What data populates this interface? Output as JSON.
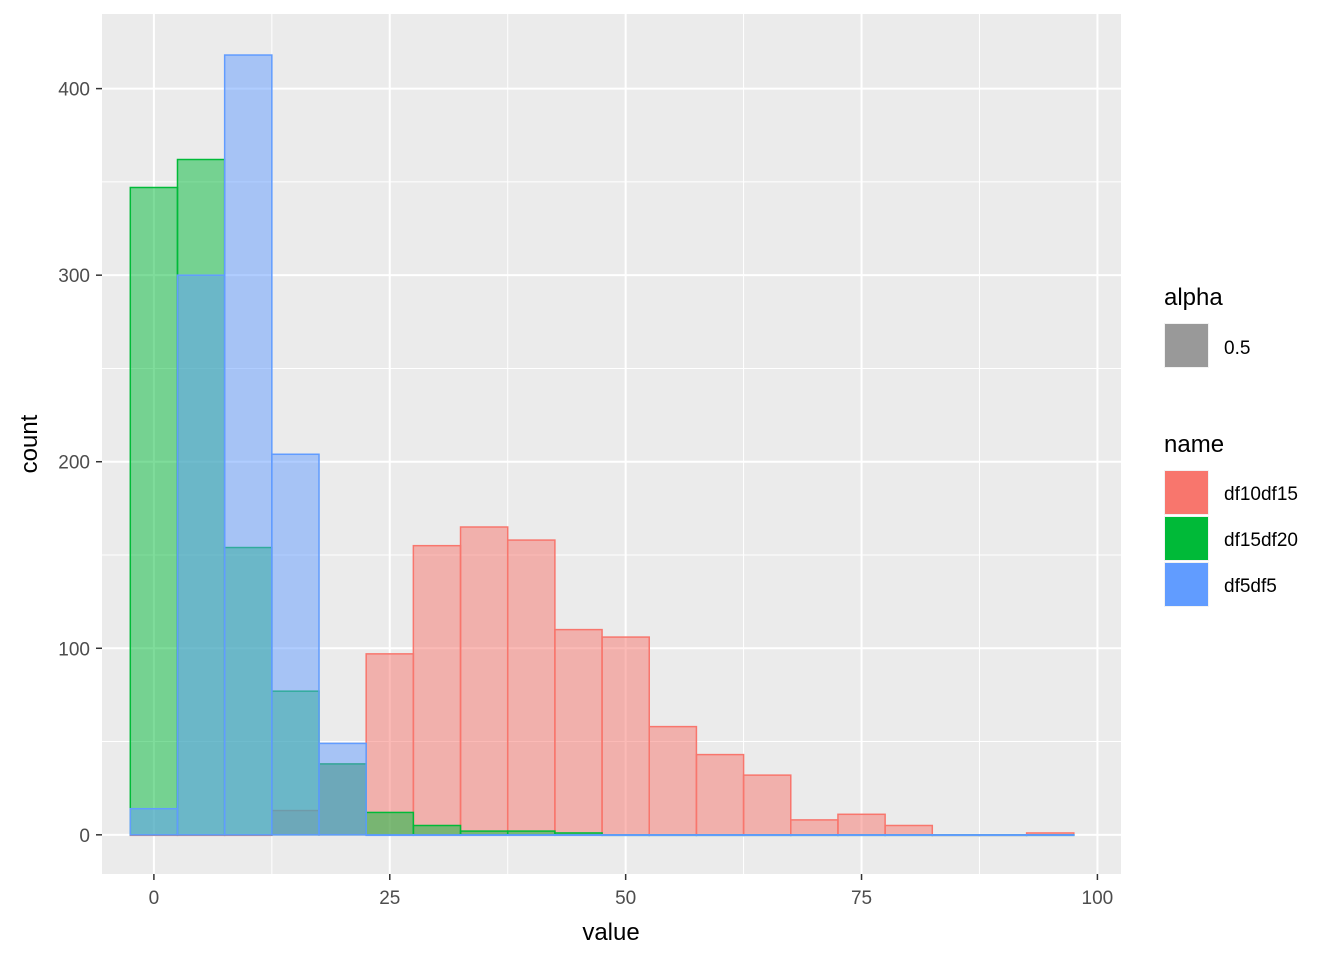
{
  "chart_data": {
    "type": "histogram",
    "xlabel": "value",
    "ylabel": "count",
    "xlim": [
      -5.5,
      102.5
    ],
    "ylim": [
      -21,
      440
    ],
    "x_ticks": [
      0,
      25,
      50,
      75,
      100
    ],
    "y_ticks": [
      0,
      100,
      200,
      300,
      400
    ],
    "x_tick_labels": [
      "0",
      "25",
      "50",
      "75",
      "100"
    ],
    "y_tick_labels": [
      "0",
      "100",
      "200",
      "300",
      "400"
    ],
    "bin_width": 5,
    "bin_centers": [
      0,
      5,
      10,
      15,
      20,
      25,
      30,
      35,
      40,
      45,
      50,
      55,
      60,
      65,
      70,
      75,
      80,
      85,
      90,
      95
    ],
    "grid": true,
    "legend_position": "right",
    "legend": {
      "alpha": {
        "title": "alpha",
        "label": "0.5",
        "color": "#999999"
      },
      "name": {
        "title": "name"
      }
    },
    "series": [
      {
        "name": "df10df15",
        "color": "#F8766D",
        "values": [
          0,
          0,
          0,
          13,
          38,
          97,
          155,
          165,
          158,
          110,
          106,
          58,
          43,
          32,
          8,
          11,
          5,
          0,
          0,
          1
        ]
      },
      {
        "name": "df15df20",
        "color": "#00BA38",
        "values": [
          347,
          362,
          154,
          77,
          38,
          12,
          5,
          2,
          2,
          1,
          0,
          0,
          0,
          0,
          0,
          0,
          0,
          0,
          0,
          0
        ]
      },
      {
        "name": "df5df5",
        "color": "#619CFF",
        "values": [
          14,
          300,
          418,
          204,
          49,
          0,
          0,
          0,
          0,
          0,
          0,
          0,
          0,
          0,
          0,
          0,
          0,
          0,
          0,
          0
        ]
      }
    ]
  }
}
